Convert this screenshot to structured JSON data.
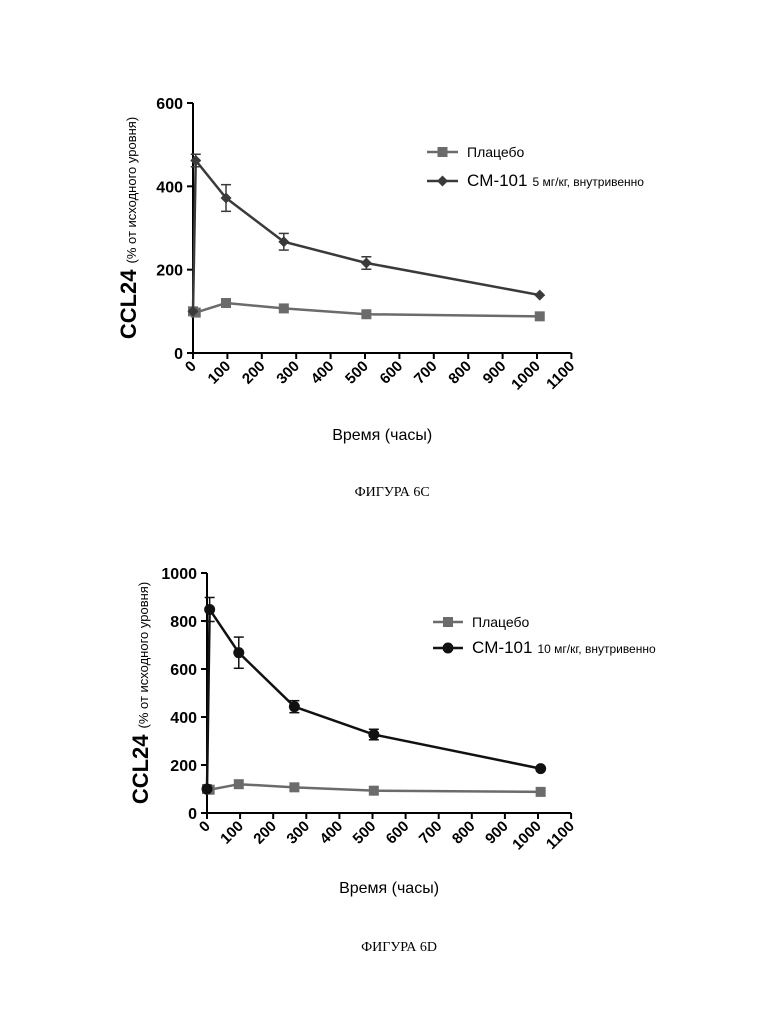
{
  "colors": {
    "placebo": "#6b6b6b",
    "cm101_c": "#3a3a3a",
    "cm101_d": "#111111",
    "axis": "#000000"
  },
  "chart_data": [
    {
      "type": "line",
      "figure_caption": "ФИГУРА 6C",
      "xlabel": "Время (часы)",
      "ylabel_main": "CCL24",
      "ylabel_sub": "(% от исходного уровня)",
      "xlim": [
        0,
        1100
      ],
      "ylim": [
        0,
        600
      ],
      "xticks": [
        0,
        100,
        200,
        300,
        400,
        500,
        600,
        700,
        800,
        900,
        1000,
        1100
      ],
      "yticks": [
        0,
        200,
        400,
        600
      ],
      "grid": false,
      "legend_position": "top-right",
      "series": [
        {
          "name": "Плацебо",
          "marker": "square",
          "color_key": "placebo",
          "x": [
            0,
            8,
            96,
            264,
            504,
            1008
          ],
          "y": [
            100,
            97,
            120,
            107,
            93,
            88
          ],
          "err": [
            0,
            0,
            0,
            0,
            0,
            0
          ]
        },
        {
          "name": "CM-101",
          "dose": "5 мг/кг, внутривенно",
          "marker": "diamond",
          "color_key": "cm101_c",
          "x": [
            0,
            8,
            96,
            264,
            504,
            1008
          ],
          "y": [
            100,
            462,
            372,
            267,
            216,
            139
          ],
          "err": [
            0,
            15,
            32,
            20,
            15,
            0
          ]
        }
      ]
    },
    {
      "type": "line",
      "figure_caption": "ФИГУРА 6D",
      "xlabel": "Время (часы)",
      "ylabel_main": "CCL24",
      "ylabel_sub": "(% от исходного уровня)",
      "xlim": [
        0,
        1100
      ],
      "ylim": [
        0,
        1000
      ],
      "xticks": [
        0,
        100,
        200,
        300,
        400,
        500,
        600,
        700,
        800,
        900,
        1000,
        1100
      ],
      "yticks": [
        0,
        200,
        400,
        600,
        800,
        1000
      ],
      "grid": false,
      "legend_position": "top-right",
      "series": [
        {
          "name": "Плацебо",
          "marker": "square",
          "color_key": "placebo",
          "x": [
            0,
            8,
            96,
            264,
            504,
            1008
          ],
          "y": [
            100,
            97,
            120,
            107,
            93,
            88
          ],
          "err": [
            0,
            0,
            0,
            0,
            0,
            0
          ]
        },
        {
          "name": "CM-101",
          "dose": "10 мг/кг, внутривенно",
          "marker": "circle",
          "color_key": "cm101_d",
          "x": [
            0,
            8,
            96,
            264,
            504,
            1008
          ],
          "y": [
            100,
            848,
            668,
            443,
            327,
            185
          ],
          "err": [
            0,
            50,
            65,
            25,
            22,
            0
          ]
        }
      ]
    }
  ]
}
